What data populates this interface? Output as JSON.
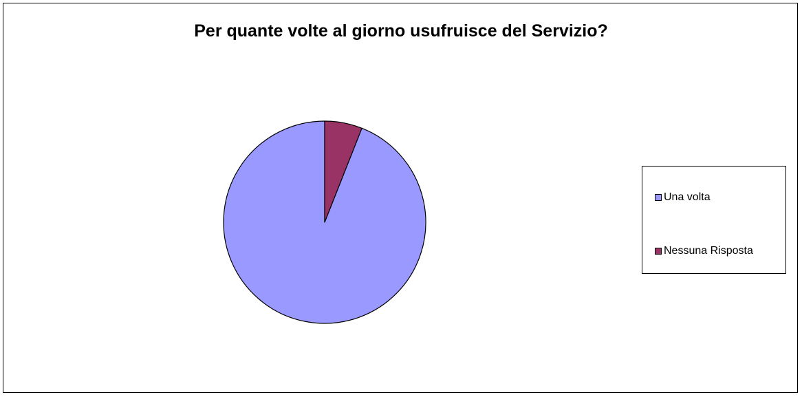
{
  "chart_data": {
    "type": "pie",
    "title": "Per quante volte al giorno usufruisce del Servizio?",
    "categories": [
      "Una volta",
      "Nessuna Risposta"
    ],
    "values": [
      94,
      6
    ],
    "colors": [
      "#9999ff",
      "#993366"
    ],
    "legend_position": "right"
  }
}
